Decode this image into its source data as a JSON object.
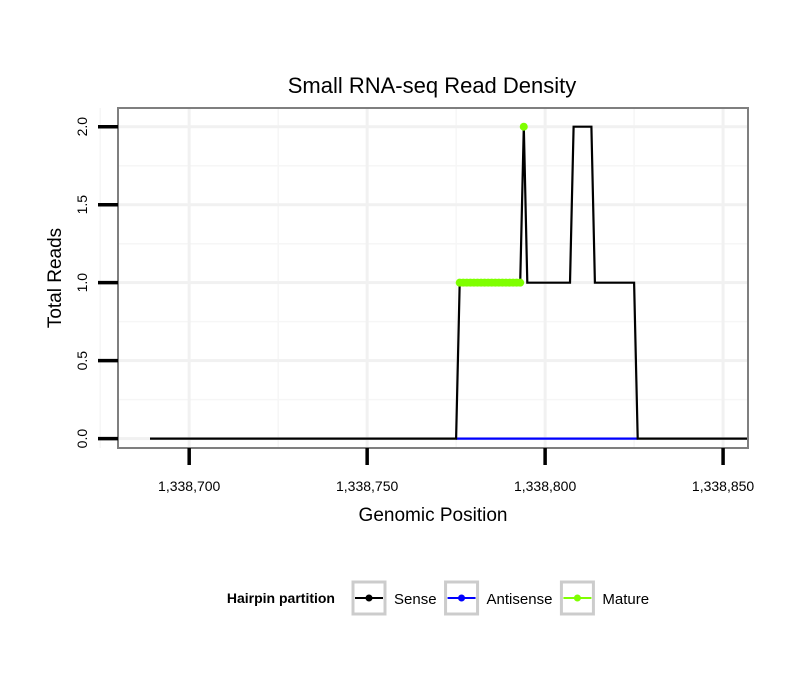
{
  "chart_data": {
    "type": "line",
    "title": "Small RNA-seq Read Density",
    "xlabel": "Genomic Position",
    "ylabel": "Total Reads",
    "xlim": [
      1338680,
      1338857
    ],
    "ylim": [
      -0.06,
      2.12
    ],
    "grid": true,
    "x_ticks": [
      1338700,
      1338750,
      1338800,
      1338850
    ],
    "x_tick_labels": [
      "1,338,700",
      "1,338,750",
      "1,338,800",
      "1,338,850"
    ],
    "y_ticks": [
      0,
      0.5,
      1,
      1.5,
      2
    ],
    "y_tick_labels": [
      "0.0",
      "0.5",
      "1.0",
      "1.5",
      "2.0"
    ],
    "legend": {
      "title": "Hairpin partition",
      "placement": "bottom"
    },
    "series": [
      {
        "name": "Sense",
        "color": "#000000",
        "x": [
          1338689,
          1338775,
          1338776,
          1338793,
          1338794,
          1338795,
          1338807,
          1338808,
          1338813,
          1338814,
          1338825,
          1338826,
          1338857
        ],
        "y": [
          0,
          0,
          1,
          1,
          2,
          1,
          1,
          2,
          2,
          1,
          1,
          0,
          0
        ]
      },
      {
        "name": "Antisense",
        "color": "#0000ff",
        "x": [
          1338775,
          1338826
        ],
        "y": [
          0,
          0
        ]
      },
      {
        "name": "Mature",
        "color": "#7fff00",
        "x": [
          1338776,
          1338777,
          1338778,
          1338779,
          1338780,
          1338781,
          1338782,
          1338783,
          1338784,
          1338785,
          1338786,
          1338787,
          1338788,
          1338789,
          1338790,
          1338791,
          1338792,
          1338793,
          1338794
        ],
        "y": [
          1,
          1,
          1,
          1,
          1,
          1,
          1,
          1,
          1,
          1,
          1,
          1,
          1,
          1,
          1,
          1,
          1,
          1,
          2
        ]
      }
    ]
  }
}
